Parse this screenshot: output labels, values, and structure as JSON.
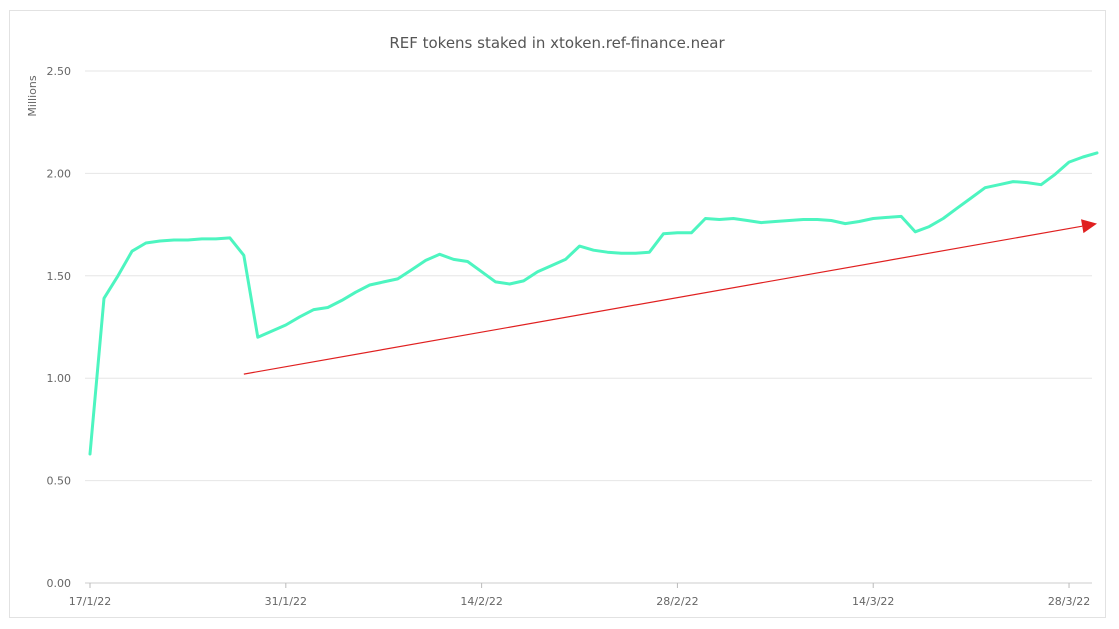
{
  "chart_data": {
    "type": "line",
    "title": "REF tokens staked in xtoken.ref-finance.near",
    "xlabel": "",
    "ylabel": "Millions",
    "ylim": [
      0,
      2.5
    ],
    "yticks": [
      "0.00",
      "0.50",
      "1.00",
      "1.50",
      "2.00",
      "2.50"
    ],
    "ytick_values": [
      0,
      0.5,
      1.0,
      1.5,
      2.0,
      2.5
    ],
    "xticks": [
      {
        "label": "17/1/22",
        "date": "2022-01-17"
      },
      {
        "label": "31/1/22",
        "date": "2022-01-31"
      },
      {
        "label": "14/2/22",
        "date": "2022-02-14"
      },
      {
        "label": "28/2/22",
        "date": "2022-02-28"
      },
      {
        "label": "14/3/22",
        "date": "2022-03-14"
      },
      {
        "label": "28/3/22",
        "date": "2022-03-28"
      }
    ],
    "grid": true,
    "legend": "none",
    "colors": {
      "series": "#4df5c0",
      "trend_arrow": "#e02020",
      "grid": "#e6e6e6"
    },
    "series": [
      {
        "x": [
          "2022-01-17",
          "2022-01-18",
          "2022-01-19",
          "2022-01-20",
          "2022-01-21",
          "2022-01-22",
          "2022-01-23",
          "2022-01-24",
          "2022-01-25",
          "2022-01-26",
          "2022-01-27",
          "2022-01-28",
          "2022-01-29",
          "2022-01-30",
          "2022-01-31",
          "2022-02-01",
          "2022-02-02",
          "2022-02-03",
          "2022-02-04",
          "2022-02-05",
          "2022-02-06",
          "2022-02-07",
          "2022-02-08",
          "2022-02-09",
          "2022-02-10",
          "2022-02-11",
          "2022-02-12",
          "2022-02-13",
          "2022-02-14",
          "2022-02-15",
          "2022-02-16",
          "2022-02-17",
          "2022-02-18",
          "2022-02-19",
          "2022-02-20",
          "2022-02-21",
          "2022-02-22",
          "2022-02-23",
          "2022-02-24",
          "2022-02-25",
          "2022-02-26",
          "2022-02-27",
          "2022-02-28",
          "2022-03-01",
          "2022-03-02",
          "2022-03-03",
          "2022-03-04",
          "2022-03-05",
          "2022-03-06",
          "2022-03-07",
          "2022-03-08",
          "2022-03-09",
          "2022-03-10",
          "2022-03-11",
          "2022-03-12",
          "2022-03-13",
          "2022-03-14",
          "2022-03-15",
          "2022-03-16",
          "2022-03-17",
          "2022-03-18",
          "2022-03-19",
          "2022-03-20",
          "2022-03-21",
          "2022-03-22",
          "2022-03-23",
          "2022-03-24",
          "2022-03-25",
          "2022-03-26",
          "2022-03-27",
          "2022-03-28",
          "2022-03-29",
          "2022-03-30"
        ],
        "values": [
          0.63,
          1.39,
          1.5,
          1.62,
          1.66,
          1.67,
          1.675,
          1.675,
          1.68,
          1.68,
          1.685,
          1.6,
          1.2,
          1.23,
          1.26,
          1.3,
          1.335,
          1.345,
          1.38,
          1.42,
          1.455,
          1.47,
          1.485,
          1.53,
          1.575,
          1.605,
          1.58,
          1.57,
          1.52,
          1.47,
          1.46,
          1.475,
          1.52,
          1.55,
          1.58,
          1.645,
          1.625,
          1.615,
          1.61,
          1.61,
          1.615,
          1.705,
          1.71,
          1.71,
          1.78,
          1.775,
          1.78,
          1.77,
          1.76,
          1.765,
          1.77,
          1.775,
          1.775,
          1.77,
          1.755,
          1.765,
          1.78,
          1.785,
          1.79,
          1.715,
          1.74,
          1.78,
          1.83,
          1.88,
          1.93,
          1.945,
          1.96,
          1.955,
          1.945,
          1.995,
          2.055,
          2.08,
          2.1
        ]
      }
    ],
    "annotations": [
      {
        "type": "arrow",
        "from": {
          "x": "2022-01-28",
          "y": 1.02
        },
        "to": {
          "x": "2022-03-30",
          "y": 1.755
        }
      }
    ]
  }
}
